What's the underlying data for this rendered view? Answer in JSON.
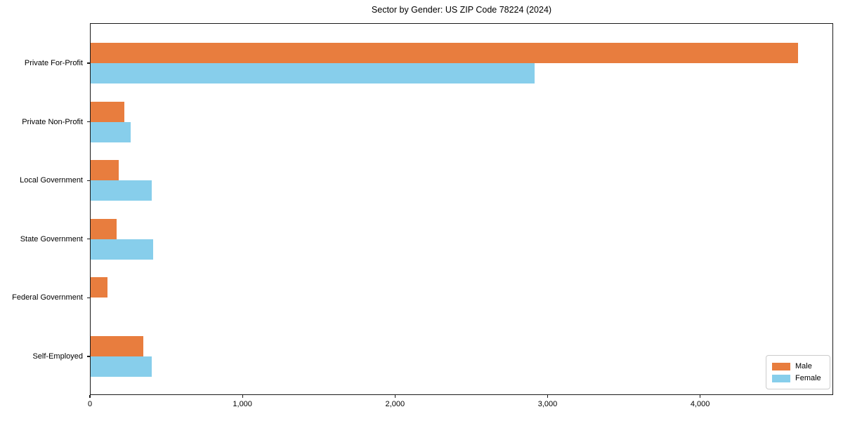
{
  "chart_data": {
    "type": "bar",
    "orientation": "horizontal",
    "title": "Sector by Gender: US ZIP Code 78224 (2024)",
    "categories": [
      "Private For-Profit",
      "Private Non-Profit",
      "Local Government",
      "State Government",
      "Federal Government",
      "Self-Employed"
    ],
    "series": [
      {
        "name": "Male",
        "color": "#E87D3E",
        "values": [
          4640,
          225,
          190,
          175,
          115,
          350
        ]
      },
      {
        "name": "Female",
        "color": "#87CEEB",
        "values": [
          2915,
          265,
          405,
          415,
          0,
          405
        ]
      }
    ],
    "xlabel": "",
    "ylabel": "",
    "xlim": [
      0,
      4872
    ],
    "x_ticks": {
      "values": [
        0,
        1000,
        2000,
        3000,
        4000
      ],
      "labels": [
        "0",
        "1,000",
        "2,000",
        "3,000",
        "4,000"
      ]
    },
    "grid": false,
    "legend": {
      "position": "lower-right",
      "entries": [
        "Male",
        "Female"
      ]
    }
  }
}
